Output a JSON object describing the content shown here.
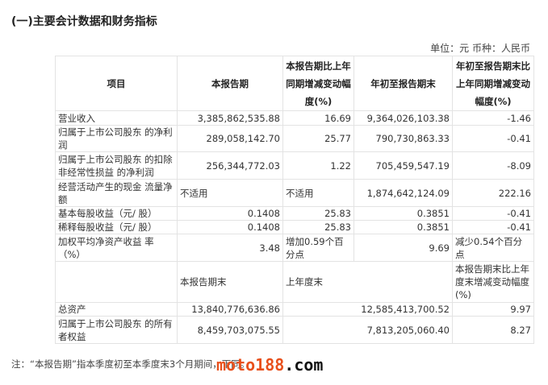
{
  "title": "(一)主要会计数据和财务指标",
  "unit": "单位：元 币种：人民币",
  "table": {
    "headers": [
      "项目",
      "本报告期",
      "本报告期比上年同期增减变动幅度(%)",
      "年初至报告期末",
      "年初至报告期末比上年同期增减变动幅度(%)"
    ],
    "rows": [
      [
        "营业收入",
        "3,385,862,535.88",
        "16.69",
        "9,364,026,103.38",
        "-1.46"
      ],
      [
        "归属于上市公司股东 的净利润",
        "289,058,142.70",
        "25.77",
        "790,730,863.33",
        "-0.41"
      ],
      [
        "归属于上市公司股东 的扣除非经常性损益 的净利润",
        "256,344,772.03",
        "1.22",
        "705,459,547.19",
        "-8.09"
      ],
      [
        "经营活动产生的现金 流量净额",
        "不适用",
        "不适用",
        "1,874,642,124.09",
        "222.16"
      ],
      [
        "基本每股收益（元/ 股）",
        "0.1408",
        "25.83",
        "0.3851",
        "-0.41"
      ],
      [
        "稀释每股收益（元/ 股）",
        "0.1408",
        "25.83",
        "0.3851",
        "-0.41"
      ],
      [
        "加权平均净资产收益 率（%）",
        "3.48",
        "增加0.59个百分点",
        "9.69",
        "减少0.54个百分点"
      ]
    ],
    "subheaders": [
      "",
      "本报告期末",
      "上年度末",
      "本报告期末比上年度末增减变动幅度(%)"
    ],
    "rows2": [
      [
        "总资产",
        "13,840,776,636.86",
        "12,585,413,700.52",
        "9.97"
      ],
      [
        "归属于上市公司股东 的所有者权益",
        "8,459,703,075.55",
        "7,813,205,060.40",
        "8.27"
      ]
    ]
  },
  "note": "注：“本报告期”指本季度初至本季度末3个月期间，下同。",
  "watermark": {
    "part1": "moto188",
    "part2": ".com"
  }
}
